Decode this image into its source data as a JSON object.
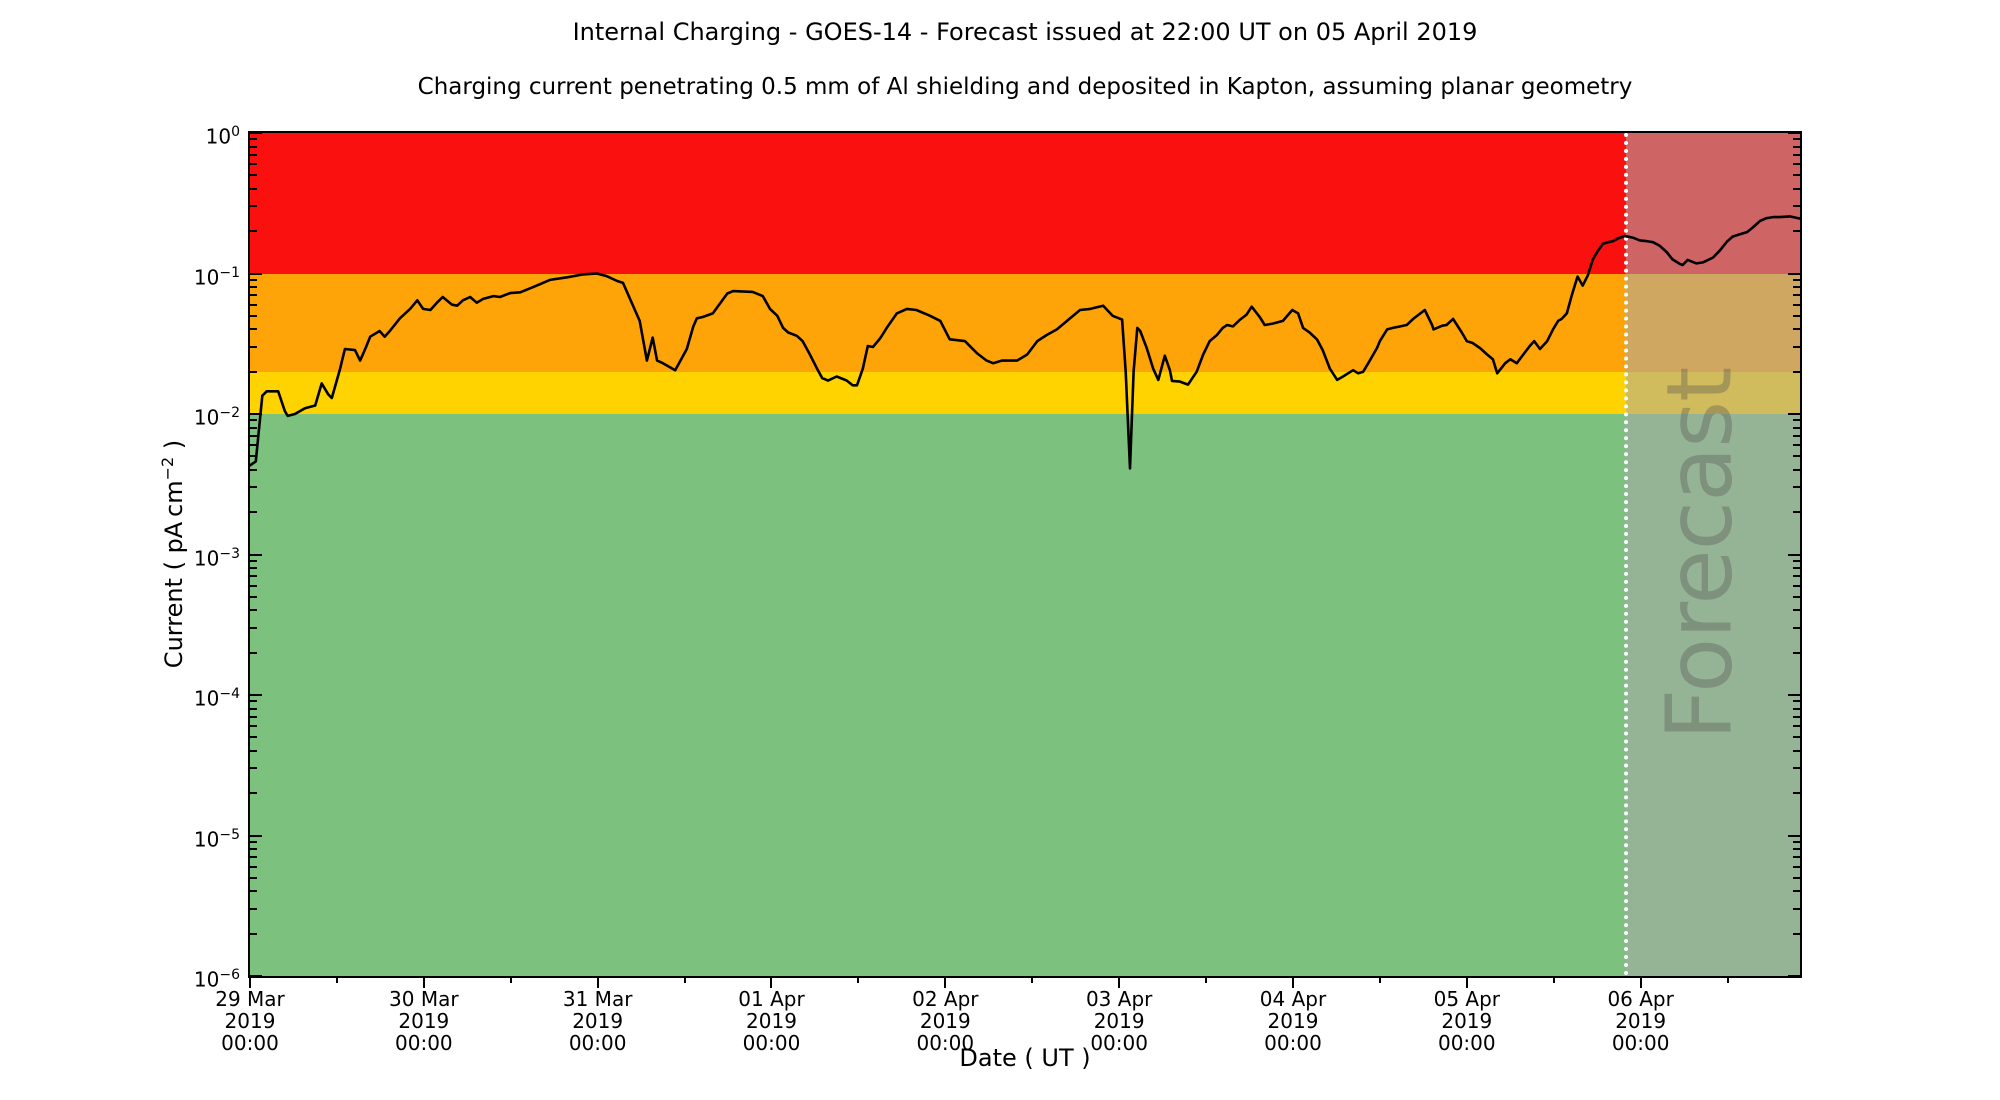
{
  "page": {
    "background": "#ffffff"
  },
  "header": {
    "title": "Internal Charging - GOES-14 - Forecast issued at 22:00 UT on 05 April 2019",
    "subtitle": "Charging current penetrating 0.5 mm of Al shielding and deposited in Kapton, assuming planar geometry"
  },
  "axes": {
    "x_title": "Date ( UT )",
    "y_title_prefix": "Current ( pA cm",
    "y_title_sup": "−2",
    "y_title_suffix": " )"
  },
  "chart_data": {
    "type": "line",
    "title": "Internal Charging - GOES-14 - Forecast issued at 22:00 UT on 05 April 2019",
    "subtitle": "Charging current penetrating 0.5 mm of Al shielding and deposited in Kapton, assuming planar geometry",
    "xlabel": "Date ( UT )",
    "ylabel": "Current ( pA cm^-2 )",
    "y_scale": "log10",
    "ylim": [
      1e-06,
      1
    ],
    "x_unit": "hours since 29 Mar 2019 00:00 UT",
    "x_range_hours": [
      0,
      214
    ],
    "x_major_tick_interval_hours": 24,
    "x_minor_tick_interval_hours": 12,
    "x_ticks": [
      {
        "date": "29 Mar",
        "year": "2019",
        "time": "00:00"
      },
      {
        "date": "30 Mar",
        "year": "2019",
        "time": "00:00"
      },
      {
        "date": "31 Mar",
        "year": "2019",
        "time": "00:00"
      },
      {
        "date": "01 Apr",
        "year": "2019",
        "time": "00:00"
      },
      {
        "date": "02 Apr",
        "year": "2019",
        "time": "00:00"
      },
      {
        "date": "03 Apr",
        "year": "2019",
        "time": "00:00"
      },
      {
        "date": "04 Apr",
        "year": "2019",
        "time": "00:00"
      },
      {
        "date": "05 Apr",
        "year": "2019",
        "time": "00:00"
      },
      {
        "date": "06 Apr",
        "year": "2019",
        "time": "00:00"
      }
    ],
    "y_tick_exponents": [
      "0",
      "−1",
      "−2",
      "−3",
      "−4",
      "−5",
      "−6"
    ],
    "grid": false,
    "legend": "none",
    "bands": [
      {
        "name": "red-alert",
        "range": [
          0.1,
          1.0
        ],
        "color": "#fb1010"
      },
      {
        "name": "orange-alert",
        "range": [
          0.02,
          0.1
        ],
        "color": "#ffa408"
      },
      {
        "name": "yellow-alert",
        "range": [
          0.01,
          0.02
        ],
        "color": "#ffd300"
      },
      {
        "name": "green-quiet",
        "range": [
          1e-06,
          0.01
        ],
        "color": "#7cc17e"
      }
    ],
    "forecast": {
      "label": "Forecast",
      "start_hour": 190,
      "start_label": "05 Apr 2019 22:00 UT",
      "overlay_color": "rgba(170,170,170,0.55)",
      "boundary_color": "#ffffff",
      "boundary_style": "dotted"
    },
    "line_color": "#000000",
    "series": [
      {
        "name": "observed",
        "color": "#000000",
        "points": [
          [
            0.0,
            0.0043
          ],
          [
            0.8,
            0.0046
          ],
          [
            1.7,
            0.0135
          ],
          [
            2.3,
            0.0145
          ],
          [
            3.9,
            0.0145
          ],
          [
            4.8,
            0.0105
          ],
          [
            5.2,
            0.0097
          ],
          [
            6.2,
            0.01
          ],
          [
            7.6,
            0.011
          ],
          [
            9.0,
            0.0115
          ],
          [
            9.9,
            0.0165
          ],
          [
            10.8,
            0.0138
          ],
          [
            11.3,
            0.013
          ],
          [
            12.4,
            0.0206
          ],
          [
            13.1,
            0.029
          ],
          [
            14.5,
            0.0285
          ],
          [
            15.2,
            0.024
          ],
          [
            15.9,
            0.029
          ],
          [
            16.6,
            0.0355
          ],
          [
            17.9,
            0.039
          ],
          [
            18.6,
            0.0355
          ],
          [
            19.3,
            0.039
          ],
          [
            20.7,
            0.048
          ],
          [
            22.1,
            0.056
          ],
          [
            23.1,
            0.0645
          ],
          [
            23.9,
            0.056
          ],
          [
            24.9,
            0.055
          ],
          [
            25.8,
            0.062
          ],
          [
            26.6,
            0.068
          ],
          [
            27.9,
            0.06
          ],
          [
            28.6,
            0.059
          ],
          [
            29.4,
            0.0645
          ],
          [
            30.4,
            0.068
          ],
          [
            31.3,
            0.062
          ],
          [
            32.2,
            0.066
          ],
          [
            33.6,
            0.069
          ],
          [
            34.5,
            0.068
          ],
          [
            35.9,
            0.0725
          ],
          [
            37.3,
            0.0735
          ],
          [
            39.1,
            0.08
          ],
          [
            41.4,
            0.09
          ],
          [
            43.8,
            0.094
          ],
          [
            46.0,
            0.0985
          ],
          [
            47.9,
            0.1
          ],
          [
            49.3,
            0.0955
          ],
          [
            50.7,
            0.0885
          ],
          [
            51.5,
            0.0857
          ],
          [
            53.8,
            0.046
          ],
          [
            54.8,
            0.024
          ],
          [
            55.6,
            0.035
          ],
          [
            56.2,
            0.024
          ],
          [
            57.0,
            0.023
          ],
          [
            58.7,
            0.0205
          ],
          [
            60.3,
            0.029
          ],
          [
            61.2,
            0.042
          ],
          [
            61.7,
            0.048
          ],
          [
            62.5,
            0.049
          ],
          [
            63.9,
            0.052
          ],
          [
            65.9,
            0.072
          ],
          [
            66.7,
            0.075
          ],
          [
            69.4,
            0.074
          ],
          [
            70.8,
            0.069
          ],
          [
            71.8,
            0.056
          ],
          [
            72.8,
            0.05
          ],
          [
            73.6,
            0.041
          ],
          [
            74.3,
            0.038
          ],
          [
            75.5,
            0.036
          ],
          [
            76.3,
            0.033
          ],
          [
            77.3,
            0.0265
          ],
          [
            78.3,
            0.021
          ],
          [
            79.0,
            0.018
          ],
          [
            79.8,
            0.0173
          ],
          [
            81.0,
            0.0185
          ],
          [
            82.4,
            0.0173
          ],
          [
            83.2,
            0.016
          ],
          [
            83.8,
            0.016
          ],
          [
            84.6,
            0.021
          ],
          [
            85.3,
            0.0305
          ],
          [
            86.0,
            0.03
          ],
          [
            87.0,
            0.0345
          ],
          [
            87.9,
            0.041
          ],
          [
            89.3,
            0.052
          ],
          [
            90.7,
            0.056
          ],
          [
            92.0,
            0.055
          ],
          [
            93.9,
            0.05
          ],
          [
            95.3,
            0.046
          ],
          [
            96.6,
            0.034
          ],
          [
            98.7,
            0.033
          ],
          [
            100.4,
            0.027
          ],
          [
            101.7,
            0.024
          ],
          [
            102.6,
            0.023
          ],
          [
            103.8,
            0.024
          ],
          [
            105.9,
            0.024
          ],
          [
            107.3,
            0.0265
          ],
          [
            108.7,
            0.033
          ],
          [
            110.0,
            0.0365
          ],
          [
            111.4,
            0.04
          ],
          [
            112.8,
            0.046
          ],
          [
            114.6,
            0.055
          ],
          [
            116.0,
            0.056
          ],
          [
            117.8,
            0.059
          ],
          [
            119.1,
            0.05
          ],
          [
            120.4,
            0.047
          ],
          [
            120.9,
            0.02
          ],
          [
            121.5,
            0.0041
          ],
          [
            122.0,
            0.02
          ],
          [
            122.5,
            0.041
          ],
          [
            122.9,
            0.039
          ],
          [
            123.8,
            0.0295
          ],
          [
            124.7,
            0.021
          ],
          [
            125.4,
            0.0175
          ],
          [
            126.3,
            0.026
          ],
          [
            127.0,
            0.0205
          ],
          [
            127.3,
            0.0172
          ],
          [
            128.4,
            0.017
          ],
          [
            129.5,
            0.0162
          ],
          [
            130.7,
            0.02
          ],
          [
            131.6,
            0.0265
          ],
          [
            132.5,
            0.033
          ],
          [
            133.5,
            0.0365
          ],
          [
            134.3,
            0.041
          ],
          [
            134.9,
            0.043
          ],
          [
            135.7,
            0.042
          ],
          [
            136.7,
            0.047
          ],
          [
            137.6,
            0.051
          ],
          [
            138.3,
            0.058
          ],
          [
            139.4,
            0.049
          ],
          [
            140.1,
            0.043
          ],
          [
            141.2,
            0.044
          ],
          [
            142.6,
            0.046
          ],
          [
            143.9,
            0.055
          ],
          [
            144.7,
            0.052
          ],
          [
            145.4,
            0.041
          ],
          [
            146.3,
            0.038
          ],
          [
            147.3,
            0.034
          ],
          [
            148.1,
            0.0285
          ],
          [
            149.1,
            0.021
          ],
          [
            150.1,
            0.0175
          ],
          [
            150.9,
            0.0185
          ],
          [
            152.3,
            0.0205
          ],
          [
            153.0,
            0.0195
          ],
          [
            153.7,
            0.02
          ],
          [
            154.6,
            0.024
          ],
          [
            155.6,
            0.0295
          ],
          [
            156.0,
            0.033
          ],
          [
            157.0,
            0.04
          ],
          [
            157.8,
            0.041
          ],
          [
            159.7,
            0.043
          ],
          [
            160.6,
            0.0475
          ],
          [
            162.2,
            0.055
          ],
          [
            163.2,
            0.043
          ],
          [
            163.4,
            0.04
          ],
          [
            164.6,
            0.0425
          ],
          [
            165.2,
            0.043
          ],
          [
            166.1,
            0.0475
          ],
          [
            167.3,
            0.038
          ],
          [
            168.0,
            0.033
          ],
          [
            168.8,
            0.032
          ],
          [
            169.8,
            0.0295
          ],
          [
            170.8,
            0.0265
          ],
          [
            171.6,
            0.0245
          ],
          [
            172.2,
            0.0195
          ],
          [
            173.3,
            0.023
          ],
          [
            174.0,
            0.0245
          ],
          [
            174.9,
            0.023
          ],
          [
            175.8,
            0.0265
          ],
          [
            176.7,
            0.0305
          ],
          [
            177.3,
            0.033
          ],
          [
            178.1,
            0.029
          ],
          [
            179.1,
            0.033
          ],
          [
            179.9,
            0.04
          ],
          [
            180.6,
            0.046
          ],
          [
            181.1,
            0.0475
          ],
          [
            181.8,
            0.052
          ],
          [
            182.5,
            0.07
          ],
          [
            183.2,
            0.092
          ],
          [
            183.3,
            0.095
          ],
          [
            184.0,
            0.082
          ],
          [
            184.7,
            0.097
          ],
          [
            185.4,
            0.126
          ],
          [
            186.1,
            0.145
          ],
          [
            186.8,
            0.163
          ],
          [
            187.5,
            0.167
          ],
          [
            188.2,
            0.17
          ],
          [
            188.9,
            0.178
          ],
          [
            189.8,
            0.185
          ],
          [
            190.0,
            0.184
          ]
        ]
      },
      {
        "name": "forecast",
        "color": "#000000",
        "points": [
          [
            190.0,
            0.184
          ],
          [
            190.9,
            0.18
          ],
          [
            191.9,
            0.172
          ],
          [
            192.8,
            0.17
          ],
          [
            193.7,
            0.167
          ],
          [
            194.6,
            0.158
          ],
          [
            195.6,
            0.142
          ],
          [
            196.4,
            0.126
          ],
          [
            197.4,
            0.117
          ],
          [
            197.8,
            0.115
          ],
          [
            198.5,
            0.125
          ],
          [
            199.7,
            0.118
          ],
          [
            200.6,
            0.12
          ],
          [
            202.0,
            0.13
          ],
          [
            202.9,
            0.145
          ],
          [
            203.9,
            0.168
          ],
          [
            204.7,
            0.183
          ],
          [
            205.7,
            0.19
          ],
          [
            206.7,
            0.197
          ],
          [
            207.5,
            0.213
          ],
          [
            208.5,
            0.237
          ],
          [
            209.4,
            0.248
          ],
          [
            210.3,
            0.252
          ],
          [
            211.2,
            0.252
          ],
          [
            212.6,
            0.255
          ],
          [
            213.7,
            0.248
          ],
          [
            214.0,
            0.246
          ]
        ]
      }
    ]
  }
}
